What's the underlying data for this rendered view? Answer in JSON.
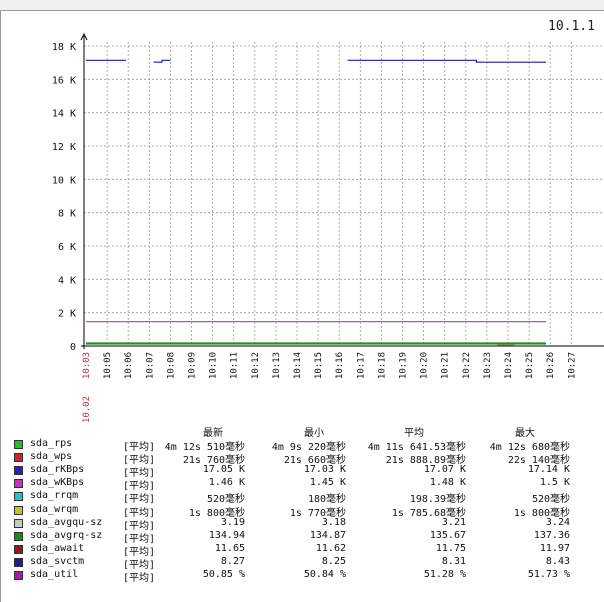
{
  "window": {
    "title": "10.1.1"
  },
  "chart_data": {
    "type": "line",
    "y_ticks": [
      "0",
      "2 K",
      "4 K",
      "6 K",
      "8 K",
      "10 K",
      "12 K",
      "14 K",
      "16 K",
      "18 K"
    ],
    "ylim": [
      0,
      18000
    ],
    "x_ticks": [
      "10:03",
      "10:05",
      "10:06",
      "10:07",
      "10:08",
      "10:09",
      "10:10",
      "10:11",
      "10:12",
      "10:13",
      "10:14",
      "10:15",
      "10:16",
      "10:17",
      "10:18",
      "10:19",
      "10:20",
      "10:21",
      "10:22",
      "10:23",
      "10:24",
      "10:25",
      "10:26",
      "10:27"
    ],
    "x_date_label": "10.02",
    "grid": true,
    "series": [
      {
        "name": "sda_rKBps",
        "color": "#1a1aa6",
        "segments": [
          [
            [
              0,
              17140
            ],
            [
              1.9,
              17140
            ]
          ],
          [
            [
              3.2,
              17030
            ],
            [
              3.6,
              17030
            ],
            [
              3.6,
              17140
            ],
            [
              4.0,
              17140
            ]
          ],
          [
            [
              12.4,
              17140
            ],
            [
              18.5,
              17140
            ],
            [
              18.5,
              17030
            ],
            [
              19.4,
              17030
            ],
            [
              19.4,
              17030
            ],
            [
              21.8,
              17030
            ]
          ]
        ]
      },
      {
        "name": "sda_wKBps",
        "color": "#c431c4",
        "segments": [
          [
            [
              0,
              1460
            ],
            [
              21.8,
              1460
            ]
          ]
        ]
      },
      {
        "name": "sda_wrqm",
        "color": "#1e8a1e",
        "segments": [
          [
            [
              0,
              180
            ],
            [
              21.8,
              180
            ]
          ]
        ]
      },
      {
        "name": "sda_rrqm",
        "color": "#2f8f2f",
        "segments": [
          [
            [
              0,
              120
            ],
            [
              21.8,
              120
            ]
          ]
        ]
      },
      {
        "name": "sda_wps",
        "color": "#c43131",
        "segments": [
          [
            [
              19.5,
              40
            ],
            [
              20.3,
              40
            ]
          ]
        ]
      }
    ]
  },
  "legend": {
    "headers": [
      "最新",
      "最小",
      "平均",
      "最大"
    ],
    "rows": [
      {
        "name": "sda_rps",
        "color": "#22c122",
        "agg": "[平均]",
        "v": [
          "4m 12s 510毫秒",
          "4m 9s 220毫秒",
          "4m 11s 641.53毫秒",
          "4m 12s 680毫秒"
        ]
      },
      {
        "name": "sda_wps",
        "color": "#c42a2a",
        "agg": "[平均]",
        "v": [
          "21s 760毫秒",
          "21s 660毫秒",
          "21s 888.89毫秒",
          "22s 140毫秒"
        ]
      },
      {
        "name": "sda_rKBps",
        "color": "#2222c4",
        "agg": "[平均]",
        "v": [
          "17.05 K",
          "17.03 K",
          "17.07 K",
          "17.14 K"
        ]
      },
      {
        "name": "sda_wKBps",
        "color": "#c431c4",
        "agg": "[平均]",
        "v": [
          "1.46 K",
          "1.45 K",
          "1.48 K",
          "1.5 K"
        ]
      },
      {
        "name": "sda_rrqm",
        "color": "#22c4c4",
        "agg": "[平均]",
        "v": [
          "520毫秒",
          "180毫秒",
          "198.39毫秒",
          "520毫秒"
        ]
      },
      {
        "name": "sda_wrqm",
        "color": "#c4c422",
        "agg": "[平均]",
        "v": [
          "1s 800毫秒",
          "1s 770毫秒",
          "1s 785.68毫秒",
          "1s 800毫秒"
        ]
      },
      {
        "name": "sda_avgqu-sz",
        "color": "#c8c8c8",
        "agg": "[平均]",
        "v": [
          "3.19",
          "3.18",
          "3.21",
          "3.24"
        ]
      },
      {
        "name": "sda_avgrq-sz",
        "color": "#1e8a1e",
        "agg": "[平均]",
        "v": [
          "134.94",
          "134.87",
          "135.67",
          "137.36"
        ]
      },
      {
        "name": "sda_await",
        "color": "#8a1e1e",
        "agg": "[平均]",
        "v": [
          "11.65",
          "11.62",
          "11.75",
          "11.97"
        ]
      },
      {
        "name": "sda_svctm",
        "color": "#1e1e8a",
        "agg": "[平均]",
        "v": [
          "8.27",
          "8.25",
          "8.31",
          "8.43"
        ]
      },
      {
        "name": "sda_util",
        "color": "#a21ea2",
        "agg": "[平均]",
        "v": [
          "50.85 %",
          "50.84 %",
          "51.28 %",
          "51.73 %"
        ]
      }
    ]
  }
}
